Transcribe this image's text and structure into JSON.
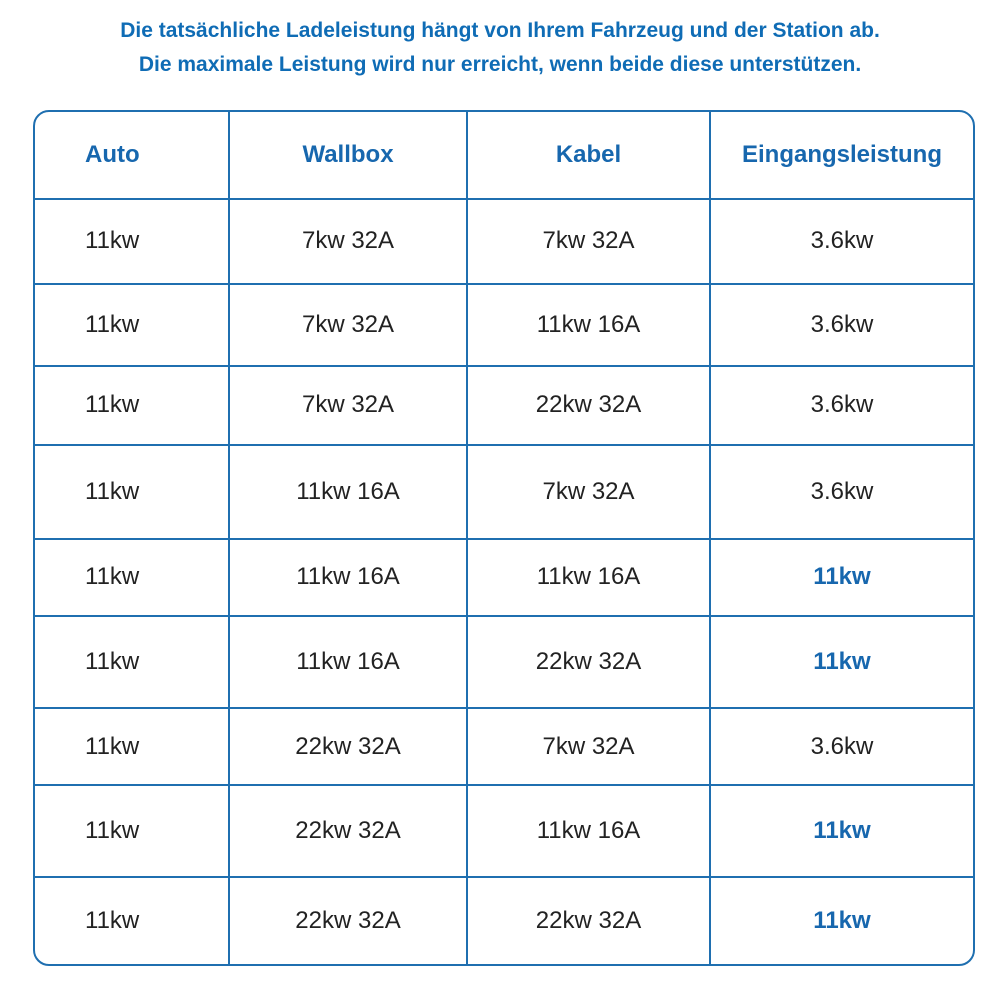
{
  "intro": {
    "line1": "Die tatsächliche Ladeleistung hängt von Ihrem Fahrzeug und der Station ab.",
    "line2": "Die maximale Leistung wird nur erreicht, wenn beide diese unterstützen."
  },
  "table": {
    "headers": [
      "Auto",
      "Wallbox",
      "Kabel",
      "Eingangsleistung"
    ],
    "rows": [
      {
        "auto": "11kw",
        "wallbox": "7kw 32A",
        "kabel": "7kw 32A",
        "eingang": "3.6kw",
        "highlight": false
      },
      {
        "auto": "11kw",
        "wallbox": "7kw 32A",
        "kabel": "11kw 16A",
        "eingang": "3.6kw",
        "highlight": false
      },
      {
        "auto": "11kw",
        "wallbox": "7kw 32A",
        "kabel": "22kw 32A",
        "eingang": "3.6kw",
        "highlight": false
      },
      {
        "auto": "11kw",
        "wallbox": "11kw 16A",
        "kabel": "7kw 32A",
        "eingang": "3.6kw",
        "highlight": false
      },
      {
        "auto": "11kw",
        "wallbox": "11kw 16A",
        "kabel": "11kw 16A",
        "eingang": "11kw",
        "highlight": true
      },
      {
        "auto": "11kw",
        "wallbox": "11kw 16A",
        "kabel": "22kw 32A",
        "eingang": "11kw",
        "highlight": true
      },
      {
        "auto": "11kw",
        "wallbox": "22kw 32A",
        "kabel": "7kw 32A",
        "eingang": "3.6kw",
        "highlight": false
      },
      {
        "auto": "11kw",
        "wallbox": "22kw 32A",
        "kabel": "11kw 16A",
        "eingang": "11kw",
        "highlight": true
      },
      {
        "auto": "11kw",
        "wallbox": "22kw 32A",
        "kabel": "22kw 32A",
        "eingang": "11kw",
        "highlight": true
      }
    ]
  },
  "colors": {
    "accent": "#1767ae",
    "border": "#1f6fb0",
    "text": "#222222"
  }
}
